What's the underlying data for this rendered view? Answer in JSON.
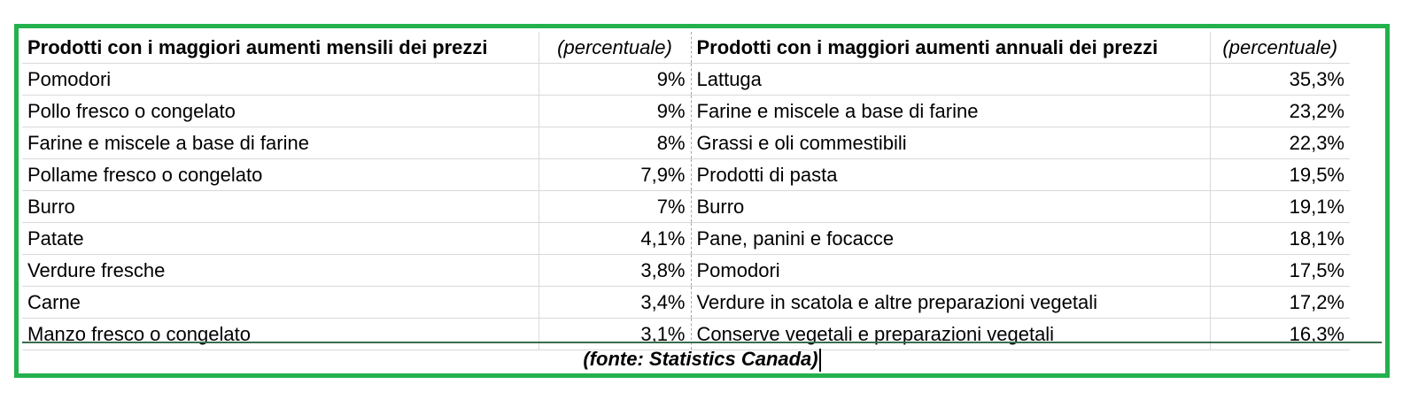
{
  "monthly": {
    "title": "Prodotti con i maggiori aumenti mensili dei prezzi",
    "unit_label": "(percentuale)",
    "rows": [
      {
        "product": "Pomodori",
        "value": "9%"
      },
      {
        "product": "Pollo fresco o congelato",
        "value": "9%"
      },
      {
        "product": "Farine e miscele a base di farine",
        "value": "8%"
      },
      {
        "product": "Pollame fresco o congelato",
        "value": "7,9%"
      },
      {
        "product": "Burro",
        "value": "7%"
      },
      {
        "product": "Patate",
        "value": "4,1%"
      },
      {
        "product": "Verdure fresche",
        "value": "3,8%"
      },
      {
        "product": "Carne",
        "value": "3,4%"
      },
      {
        "product": "Manzo fresco o congelato",
        "value": "3,1%"
      }
    ]
  },
  "annual": {
    "title": "Prodotti con i maggiori aumenti annuali dei prezzi",
    "unit_label": "(percentuale)",
    "rows": [
      {
        "product": "Lattuga",
        "value": "35,3%"
      },
      {
        "product": "Farine e miscele a base di farine",
        "value": "23,2%"
      },
      {
        "product": "Grassi e oli commestibili",
        "value": "22,3%"
      },
      {
        "product": "Prodotti di pasta",
        "value": "19,5%"
      },
      {
        "product": "Burro",
        "value": "19,1%"
      },
      {
        "product": "Pane, panini e focacce",
        "value": "18,1%"
      },
      {
        "product": "Pomodori",
        "value": "17,5%"
      },
      {
        "product": "Verdure in scatola e altre preparazioni vegetali",
        "value": "17,2%"
      },
      {
        "product": "Conserve vegetali e preparazioni vegetali",
        "value": "16,3%"
      }
    ]
  },
  "source": "(fonte: Statistics Canada)",
  "colors": {
    "frame_border": "#22b14c",
    "gridline": "#d9d9d9"
  }
}
